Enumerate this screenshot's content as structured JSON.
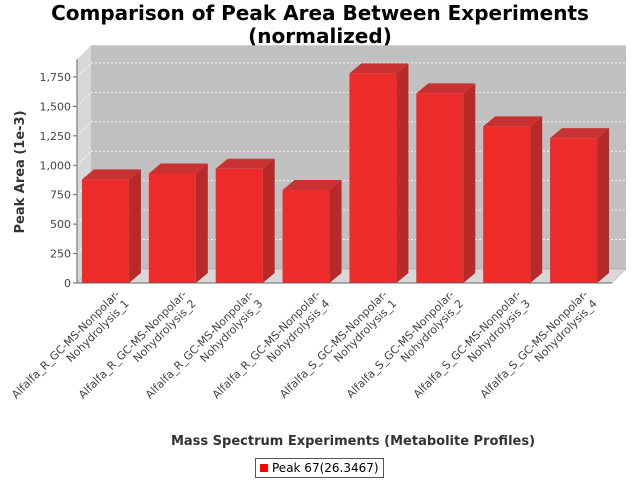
{
  "chart_data": {
    "type": "bar",
    "title": [
      "Comparison of Peak Area Between Experiments",
      "(normalized)"
    ],
    "xlabel": "Mass Spectrum Experiments (Metabolite Profiles)",
    "ylabel": "Peak Area (1e-3)",
    "ylim": [
      0,
      1900
    ],
    "yticks": [
      0,
      250,
      500,
      750,
      1000,
      1250,
      1500,
      1750
    ],
    "ytick_labels": [
      "0",
      "250",
      "500",
      "750",
      "1,000",
      "1,250",
      "1,500",
      "1,750"
    ],
    "grid": true,
    "legend_placement": "bottom",
    "categories": [
      [
        "Alfalfa_R_GC-MS-Nonpolar-",
        "Nohydrolysis_1"
      ],
      [
        "Alfalfa_R_GC-MS-Nonpolar-",
        "Nohydrolysis_2"
      ],
      [
        "Alfalfa_R_GC-MS-Nonpolar-",
        "Nohydrolysis_3"
      ],
      [
        "Alfalfa_R_GC-MS-Nonpolar-",
        "Nohydrolysis_4"
      ],
      [
        "Alfalfa_S_GC-MS-Nonpolar-",
        "Nohydrolysis_1"
      ],
      [
        "Alfalfa_S_GC-MS-Nonpolar-",
        "Nohydrolysis_2"
      ],
      [
        "Alfalfa_S_GC-MS-Nonpolar-",
        "Nohydrolysis_3"
      ],
      [
        "Alfalfa_S_GC-MS-Nonpolar-",
        "Nohydrolysis_4"
      ]
    ],
    "series": [
      {
        "name": "Peak 67(26.3467)",
        "values": [
          880,
          930,
          970,
          790,
          1780,
          1610,
          1330,
          1230
        ]
      }
    ],
    "colors": {
      "bar_front": "#ee2b2b",
      "bar_side": "#b82a2a",
      "bar_top": "#c83232",
      "plot_bg": "#c0c0c0",
      "plot_wall": "#d8d8d8",
      "legend_swatch": "#ff0000"
    }
  }
}
